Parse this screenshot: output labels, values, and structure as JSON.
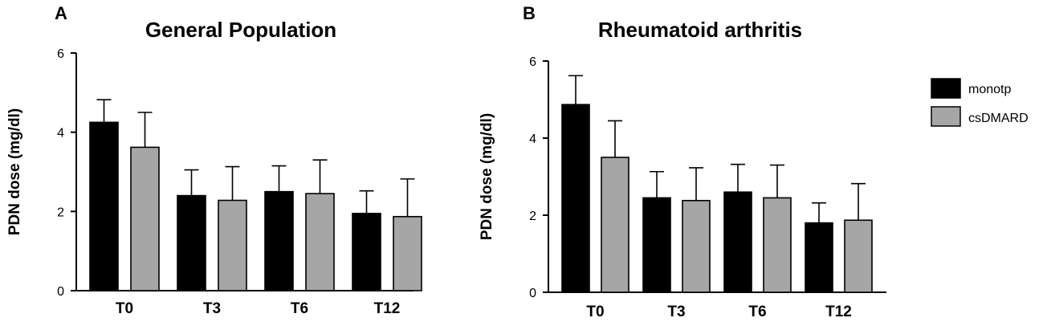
{
  "legend": [
    "monotp",
    "csDMARD"
  ],
  "colors": {
    "monotp": "#000000",
    "csDMARD": "#a6a6a6",
    "axis": "#000000"
  },
  "chart_data": [
    {
      "type": "bar",
      "panel": "A",
      "title": "General Population",
      "xlabel": "",
      "ylabel": "PDN dose (mg/dl)",
      "ylim": [
        0,
        6
      ],
      "yticks": [
        0,
        2,
        4,
        6
      ],
      "categories": [
        "T0",
        "T3",
        "T6",
        "T12"
      ],
      "series": [
        {
          "name": "monotp",
          "values": [
            4.25,
            2.4,
            2.5,
            1.95
          ],
          "errors": [
            0.57,
            0.65,
            0.65,
            0.57
          ]
        },
        {
          "name": "csDMARD",
          "values": [
            3.62,
            2.28,
            2.45,
            1.87
          ],
          "errors": [
            0.88,
            0.85,
            0.85,
            0.95
          ]
        }
      ],
      "grid": false,
      "legend": "none"
    },
    {
      "type": "bar",
      "panel": "B",
      "title": "Rheumatoid arthritis",
      "xlabel": "",
      "ylabel": "PDN dose (mg/dl)",
      "ylim": [
        0,
        6
      ],
      "yticks": [
        0,
        2,
        4,
        6
      ],
      "categories": [
        "T0",
        "T3",
        "T6",
        "T12"
      ],
      "series": [
        {
          "name": "monotp",
          "values": [
            4.87,
            2.45,
            2.6,
            1.8
          ],
          "errors": [
            0.75,
            0.68,
            0.72,
            0.52
          ]
        },
        {
          "name": "csDMARD",
          "values": [
            3.5,
            2.38,
            2.45,
            1.87
          ],
          "errors": [
            0.95,
            0.85,
            0.85,
            0.95
          ]
        }
      ],
      "grid": false,
      "legend": "right"
    }
  ]
}
